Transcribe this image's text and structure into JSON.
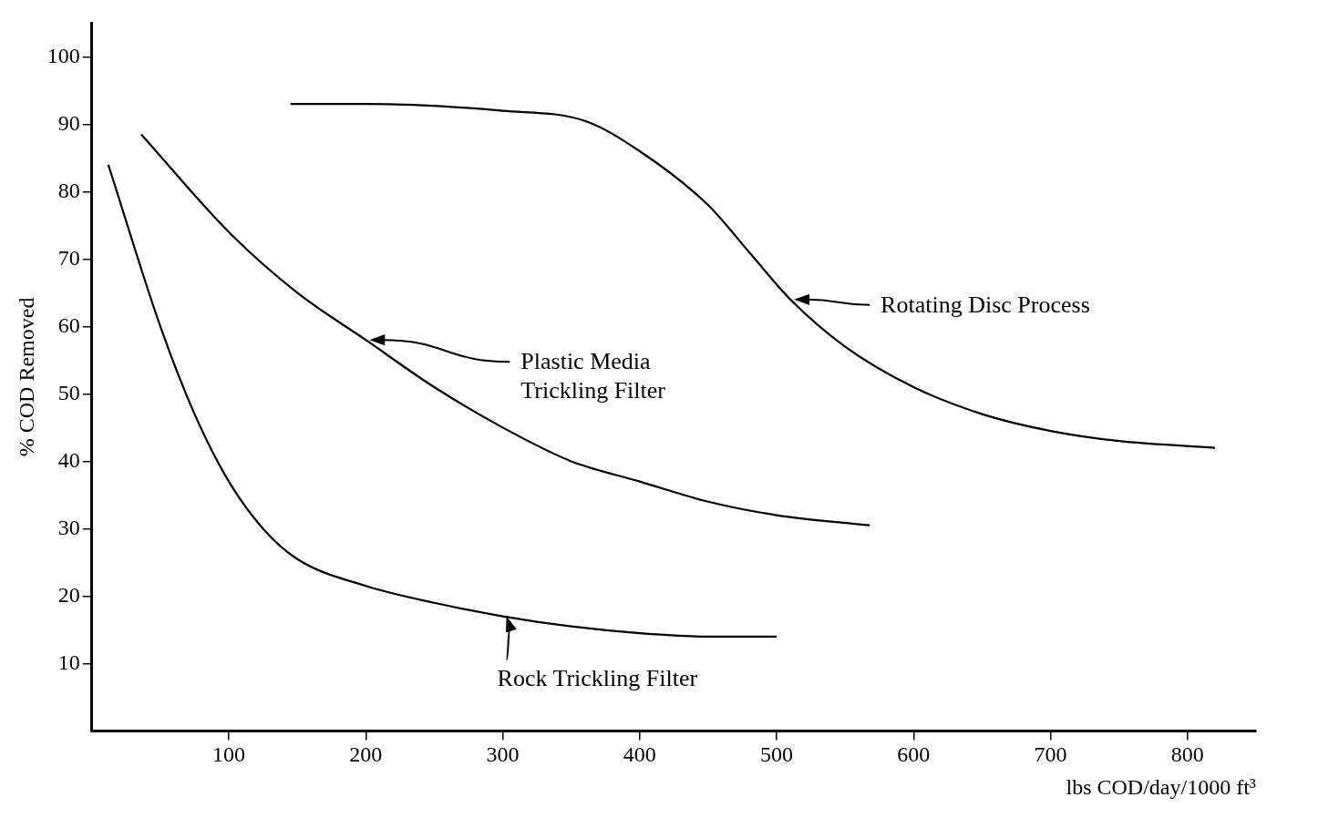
{
  "chart_data": {
    "type": "line",
    "xlabel": "lbs COD/day/1000 ft³",
    "ylabel": "% COD Removed",
    "xlim": [
      0,
      850
    ],
    "xticks": [
      100,
      200,
      300,
      400,
      500,
      600,
      700,
      800
    ],
    "ylim": [
      0,
      105
    ],
    "yticks": [
      10,
      20,
      30,
      40,
      50,
      60,
      70,
      80,
      90,
      100
    ],
    "grid": false,
    "marker": "none",
    "line_style": "solid",
    "series": [
      {
        "name": "Rotating Disc Process",
        "color": "#000000",
        "x": [
          145,
          200,
          300,
          360,
          400,
          450,
          480,
          510,
          550,
          600,
          650,
          700,
          750,
          820
        ],
        "values": [
          93,
          93,
          92,
          90.5,
          86,
          78,
          71,
          64,
          57,
          51,
          47,
          44.5,
          43,
          42
        ]
      },
      {
        "name": "Plastic Media\nTrickling Filter",
        "color": "#000000",
        "x": [
          36,
          100,
          150,
          200,
          250,
          300,
          350,
          400,
          450,
          500,
          568
        ],
        "values": [
          88.5,
          74,
          65,
          58,
          51,
          45,
          40,
          37,
          34,
          32,
          30.5
        ]
      },
      {
        "name": "Rock Trickling Filter",
        "color": "#000000",
        "x": [
          12,
          50,
          75,
          100,
          125,
          150,
          200,
          250,
          300,
          350,
          400,
          450,
          500
        ],
        "values": [
          84,
          60,
          47,
          37,
          30,
          25.5,
          21.5,
          19,
          17,
          15.5,
          14.5,
          14,
          14
        ]
      }
    ]
  }
}
